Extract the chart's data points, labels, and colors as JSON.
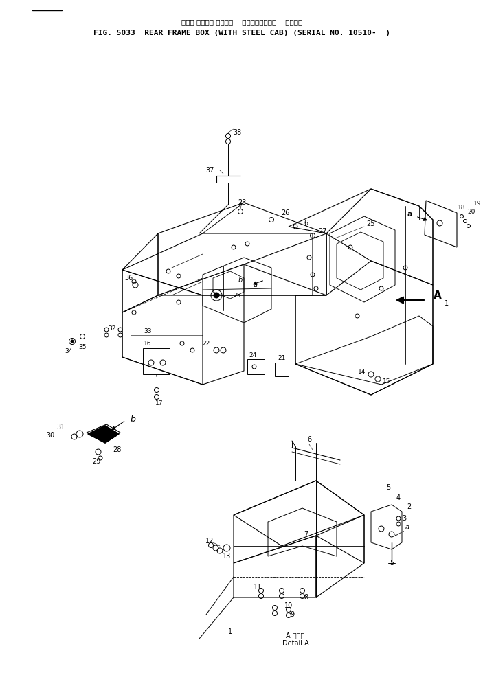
{
  "title_jp": "リヤー フレーム ボックス    スチールキャブ付    適用号機",
  "title_en": "FIG. 5033  REAR FRAME BOX (WITH STEEL CAB) (SERIAL NO. 10510-  )",
  "detail_label_jp": "A 詳細図",
  "detail_label_en": "Detail A",
  "bg_color": "#ffffff",
  "text_color": "#000000",
  "line_color": "#000000",
  "lw": 0.7,
  "fig_width": 7.03,
  "fig_height": 10.15,
  "dpi": 100
}
